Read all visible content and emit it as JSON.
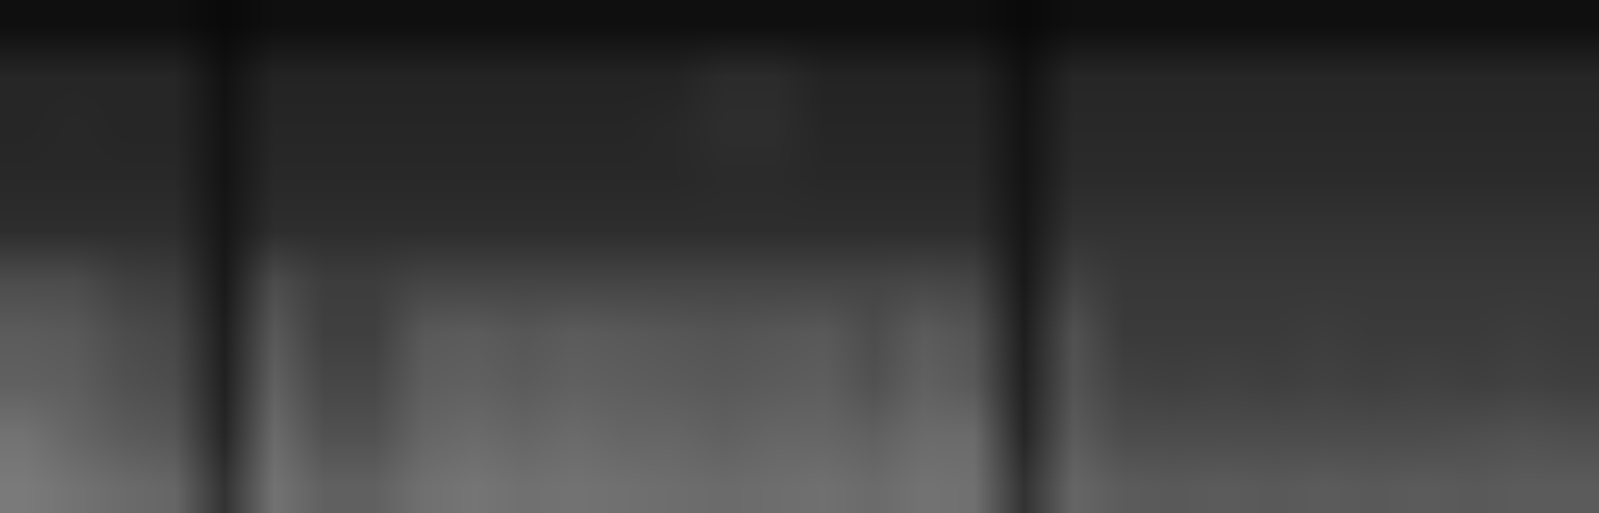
{
  "chart_data": {
    "type": "heatmap",
    "tick_labels": false,
    "cells": [
      [
        0.06,
        0.06,
        0.06,
        0.06,
        0.04,
        0.06,
        0.06,
        0.06,
        0.06,
        0.06,
        0.06,
        0.06,
        0.06,
        0.06,
        0.06,
        0.06,
        0.06,
        0.06,
        0.06,
        0.06,
        0.04,
        0.06,
        0.06,
        0.06,
        0.06,
        0.06,
        0.06,
        0.06,
        0.06,
        0.06,
        0.06,
        0.06
      ],
      [
        0.15,
        0.15,
        0.15,
        0.15,
        0.07,
        0.14,
        0.14,
        0.14,
        0.14,
        0.14,
        0.14,
        0.14,
        0.14,
        0.14,
        0.17,
        0.17,
        0.14,
        0.14,
        0.14,
        0.14,
        0.07,
        0.15,
        0.15,
        0.15,
        0.15,
        0.15,
        0.15,
        0.15,
        0.15,
        0.15,
        0.15,
        0.15
      ],
      [
        0.15,
        0.16,
        0.15,
        0.15,
        0.08,
        0.15,
        0.15,
        0.15,
        0.15,
        0.15,
        0.15,
        0.15,
        0.15,
        0.16,
        0.18,
        0.18,
        0.15,
        0.15,
        0.15,
        0.15,
        0.08,
        0.16,
        0.16,
        0.16,
        0.16,
        0.16,
        0.16,
        0.16,
        0.16,
        0.16,
        0.16,
        0.16
      ],
      [
        0.16,
        0.16,
        0.16,
        0.16,
        0.08,
        0.16,
        0.16,
        0.16,
        0.16,
        0.16,
        0.16,
        0.16,
        0.16,
        0.16,
        0.17,
        0.17,
        0.16,
        0.16,
        0.16,
        0.16,
        0.08,
        0.17,
        0.17,
        0.17,
        0.17,
        0.17,
        0.17,
        0.17,
        0.17,
        0.17,
        0.17,
        0.17
      ],
      [
        0.18,
        0.18,
        0.18,
        0.18,
        0.09,
        0.18,
        0.18,
        0.18,
        0.18,
        0.18,
        0.18,
        0.18,
        0.18,
        0.18,
        0.18,
        0.18,
        0.18,
        0.18,
        0.18,
        0.18,
        0.09,
        0.2,
        0.2,
        0.2,
        0.2,
        0.2,
        0.2,
        0.2,
        0.2,
        0.2,
        0.2,
        0.2
      ],
      [
        0.3,
        0.3,
        0.25,
        0.24,
        0.1,
        0.3,
        0.24,
        0.24,
        0.27,
        0.27,
        0.27,
        0.27,
        0.27,
        0.27,
        0.27,
        0.27,
        0.27,
        0.27,
        0.28,
        0.27,
        0.1,
        0.26,
        0.22,
        0.22,
        0.22,
        0.22,
        0.22,
        0.22,
        0.22,
        0.22,
        0.22,
        0.22
      ],
      [
        0.36,
        0.35,
        0.3,
        0.28,
        0.12,
        0.35,
        0.25,
        0.25,
        0.35,
        0.36,
        0.34,
        0.36,
        0.35,
        0.34,
        0.33,
        0.34,
        0.35,
        0.3,
        0.36,
        0.33,
        0.12,
        0.32,
        0.23,
        0.23,
        0.23,
        0.23,
        0.24,
        0.23,
        0.23,
        0.23,
        0.24,
        0.23
      ],
      [
        0.38,
        0.37,
        0.32,
        0.3,
        0.13,
        0.38,
        0.28,
        0.28,
        0.37,
        0.38,
        0.36,
        0.38,
        0.37,
        0.36,
        0.35,
        0.36,
        0.37,
        0.32,
        0.38,
        0.35,
        0.13,
        0.33,
        0.26,
        0.25,
        0.26,
        0.25,
        0.26,
        0.25,
        0.26,
        0.25,
        0.26,
        0.25
      ],
      [
        0.45,
        0.4,
        0.36,
        0.34,
        0.15,
        0.42,
        0.32,
        0.32,
        0.4,
        0.42,
        0.4,
        0.42,
        0.4,
        0.4,
        0.38,
        0.4,
        0.4,
        0.38,
        0.42,
        0.42,
        0.15,
        0.36,
        0.3,
        0.3,
        0.3,
        0.3,
        0.3,
        0.3,
        0.3,
        0.31,
        0.32,
        0.31
      ],
      [
        0.48,
        0.45,
        0.42,
        0.4,
        0.2,
        0.45,
        0.38,
        0.38,
        0.44,
        0.46,
        0.44,
        0.45,
        0.44,
        0.43,
        0.42,
        0.43,
        0.44,
        0.42,
        0.45,
        0.44,
        0.2,
        0.4,
        0.36,
        0.35,
        0.36,
        0.35,
        0.36,
        0.35,
        0.36,
        0.35,
        0.36,
        0.36
      ]
    ]
  }
}
